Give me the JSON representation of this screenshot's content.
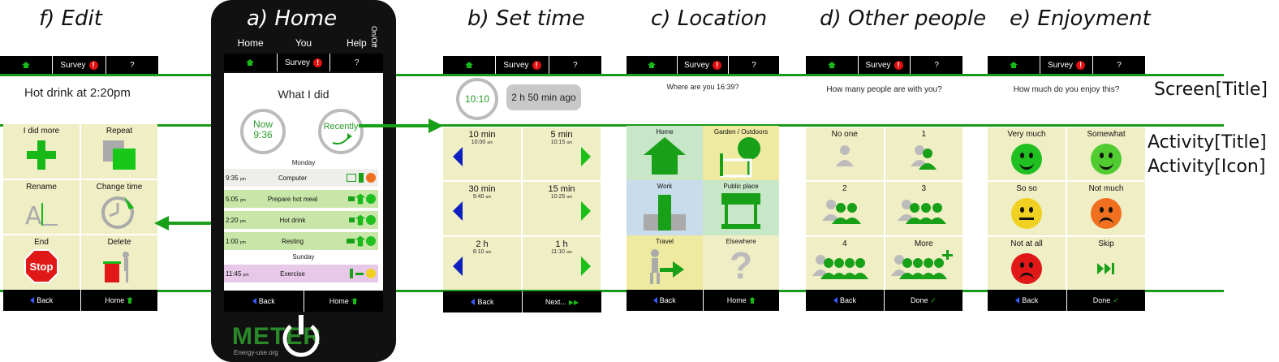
{
  "panel_titles": {
    "edit": "f) Edit",
    "home": "a) Home",
    "set_time": "b) Set time",
    "location": "c) Location",
    "other_people": "d) Other people",
    "enjoyment": "e) Enjoyment"
  },
  "side_labels": {
    "screen_title": "Screen[Title]",
    "activity_title": "Activity[Title]",
    "activity_icon": "Activity[Icon]"
  },
  "topbar": {
    "survey": "Survey",
    "alert": "!",
    "help": "?"
  },
  "colors": {
    "accent_green": "#1a9a1a",
    "cell_bg": "#efeec4",
    "alert_red": "#e01010"
  },
  "edit": {
    "title": "Hot drink at 2:20pm",
    "cells": [
      {
        "label": "I did more",
        "icon": "plus-icon"
      },
      {
        "label": "Repeat",
        "icon": "repeat-icon"
      },
      {
        "label": "Rename",
        "icon": "rename-icon"
      },
      {
        "label": "Change time",
        "icon": "clock-change-icon"
      },
      {
        "label": "End",
        "icon": "stop-sign-icon",
        "icon_text": "Stop"
      },
      {
        "label": "Delete",
        "icon": "trash-icon"
      }
    ],
    "back": "Back",
    "home": "Home"
  },
  "home": {
    "nav": [
      "Home",
      "You",
      "Help"
    ],
    "onoff": "On/Off",
    "heading": "What I did",
    "now_label": "Now",
    "now_time": "9:36",
    "recently": "Recently",
    "day1": "Monday",
    "day2": "Sunday",
    "activities": [
      {
        "time": "9:35",
        "ampm": "pm",
        "name": "Computer",
        "bg": "#eeeeea",
        "mood": "sad"
      },
      {
        "time": "5:05",
        "ampm": "pm",
        "name": "Prepare hot meal",
        "bg": "#c8e6a8",
        "mood": "happy"
      },
      {
        "time": "2:20",
        "ampm": "pm",
        "name": "Hot drink",
        "bg": "#c8e6a8",
        "mood": "happy"
      },
      {
        "time": "1:00",
        "ampm": "pm",
        "name": "Resting",
        "bg": "#c8e6a8",
        "mood": "happy"
      },
      {
        "time": "11:45",
        "ampm": "pm",
        "name": "Exercise",
        "bg": "#e8c8e8",
        "mood": "neutral"
      }
    ],
    "back": "Back",
    "home": "Home",
    "brand": "METER",
    "brand_sub": "Energy-use.org"
  },
  "set_time": {
    "clock": "10:10",
    "elapsed": "2 h 50 min ago",
    "cells": [
      {
        "label": "10 min",
        "sub": "10:00",
        "ampm": "am",
        "dir": "left"
      },
      {
        "label": "5 min",
        "sub": "10:15",
        "ampm": "am",
        "dir": "right"
      },
      {
        "label": "30 min",
        "sub": "9:40",
        "ampm": "am",
        "dir": "left"
      },
      {
        "label": "15 min",
        "sub": "10:25",
        "ampm": "am",
        "dir": "right"
      },
      {
        "label": "2 h",
        "sub": "8:10",
        "ampm": "am",
        "dir": "left"
      },
      {
        "label": "1 h",
        "sub": "11:10",
        "ampm": "am",
        "dir": "right"
      }
    ],
    "back": "Back",
    "next": "Next..."
  },
  "location": {
    "question": "Where are you 16:39?",
    "cells": [
      {
        "label": "Home",
        "icon": "house-icon",
        "bg": "#c8e6c8"
      },
      {
        "label": "Garden / Outdoors",
        "icon": "tree-icon",
        "bg": "#eeeaa0"
      },
      {
        "label": "Work",
        "icon": "building-icon",
        "bg": "#c8dcec"
      },
      {
        "label": "Public place",
        "icon": "shop-icon",
        "bg": "#c8e6c8"
      },
      {
        "label": "Travel",
        "icon": "walk-icon",
        "bg": "#eeeaa0"
      },
      {
        "label": "Elsewhere",
        "icon": "question-icon",
        "bg": "#efeec4"
      }
    ],
    "back": "Back",
    "home": "Home"
  },
  "other_people": {
    "question": "How many people are with you?",
    "cells": [
      {
        "label": "No one",
        "count": 0
      },
      {
        "label": "1",
        "count": 1
      },
      {
        "label": "2",
        "count": 2
      },
      {
        "label": "3",
        "count": 3
      },
      {
        "label": "4",
        "count": 4
      },
      {
        "label": "More",
        "count": 4
      }
    ],
    "back": "Back",
    "done": "Done"
  },
  "enjoyment": {
    "question": "How much do you enjoy this?",
    "cells": [
      {
        "label": "Very much",
        "color": "#20c020",
        "mouth": "smile"
      },
      {
        "label": "Somewhat",
        "color": "#50cc30",
        "mouth": "smile"
      },
      {
        "label": "So so",
        "color": "#f0d020",
        "mouth": "flat"
      },
      {
        "label": "Not much",
        "color": "#f07020",
        "mouth": "frown"
      },
      {
        "label": "Not at all",
        "color": "#e01818",
        "mouth": "frown"
      },
      {
        "label": "Skip",
        "icon": "skip-icon"
      }
    ],
    "back": "Back",
    "done": "Done"
  }
}
